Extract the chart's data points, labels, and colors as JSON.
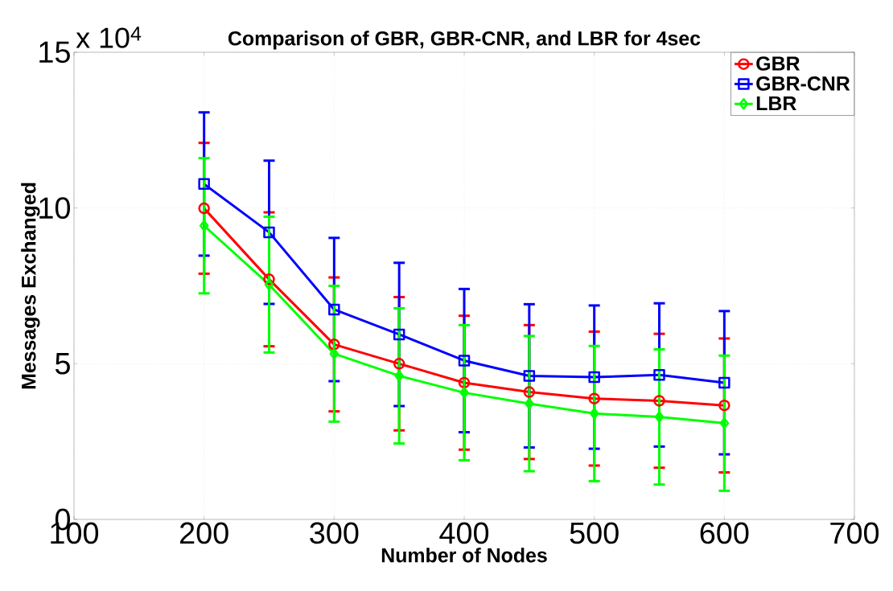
{
  "chart_data": {
    "type": "line",
    "title": "Comparison of GBR, GBR-CNR, and LBR for 4sec",
    "xlabel": "Number of Nodes",
    "ylabel": "Messages Exchanged",
    "annotations": [
      "x 10$^{4}$"
    ],
    "x": [
      200,
      250,
      300,
      350,
      400,
      450,
      500,
      550,
      600
    ],
    "series": [
      {
        "name": "GBR",
        "color": "#ff0000",
        "marker": "circle",
        "values": [
          9.99,
          7.71,
          5.62,
          5.0,
          4.39,
          4.09,
          3.88,
          3.81,
          3.66
        ],
        "errors": [
          2.1,
          2.15,
          2.15,
          2.14,
          2.15,
          2.15,
          2.15,
          2.15,
          2.15
        ]
      },
      {
        "name": "GBR-CNR",
        "color": "#0000ff",
        "marker": "square",
        "values": [
          10.77,
          9.22,
          6.74,
          5.94,
          5.1,
          4.61,
          4.57,
          4.64,
          4.39
        ],
        "errors": [
          2.3,
          2.3,
          2.3,
          2.3,
          2.3,
          2.3,
          2.3,
          2.3,
          2.3
        ]
      },
      {
        "name": "LBR",
        "color": "#00ff00",
        "marker": "diamond",
        "values": [
          9.43,
          7.54,
          5.32,
          4.61,
          4.07,
          3.72,
          3.4,
          3.29,
          3.09
        ],
        "errors": [
          2.17,
          2.18,
          2.18,
          2.17,
          2.17,
          2.17,
          2.17,
          2.17,
          2.17
        ]
      }
    ],
    "xlim": [
      100,
      700
    ],
    "ylim": [
      0,
      15
    ],
    "xticks": [
      100,
      200,
      300,
      400,
      500,
      600,
      700
    ],
    "yticks": [
      0,
      5,
      10,
      15
    ],
    "grid": true,
    "legend": "top right",
    "line_style": "solid"
  }
}
